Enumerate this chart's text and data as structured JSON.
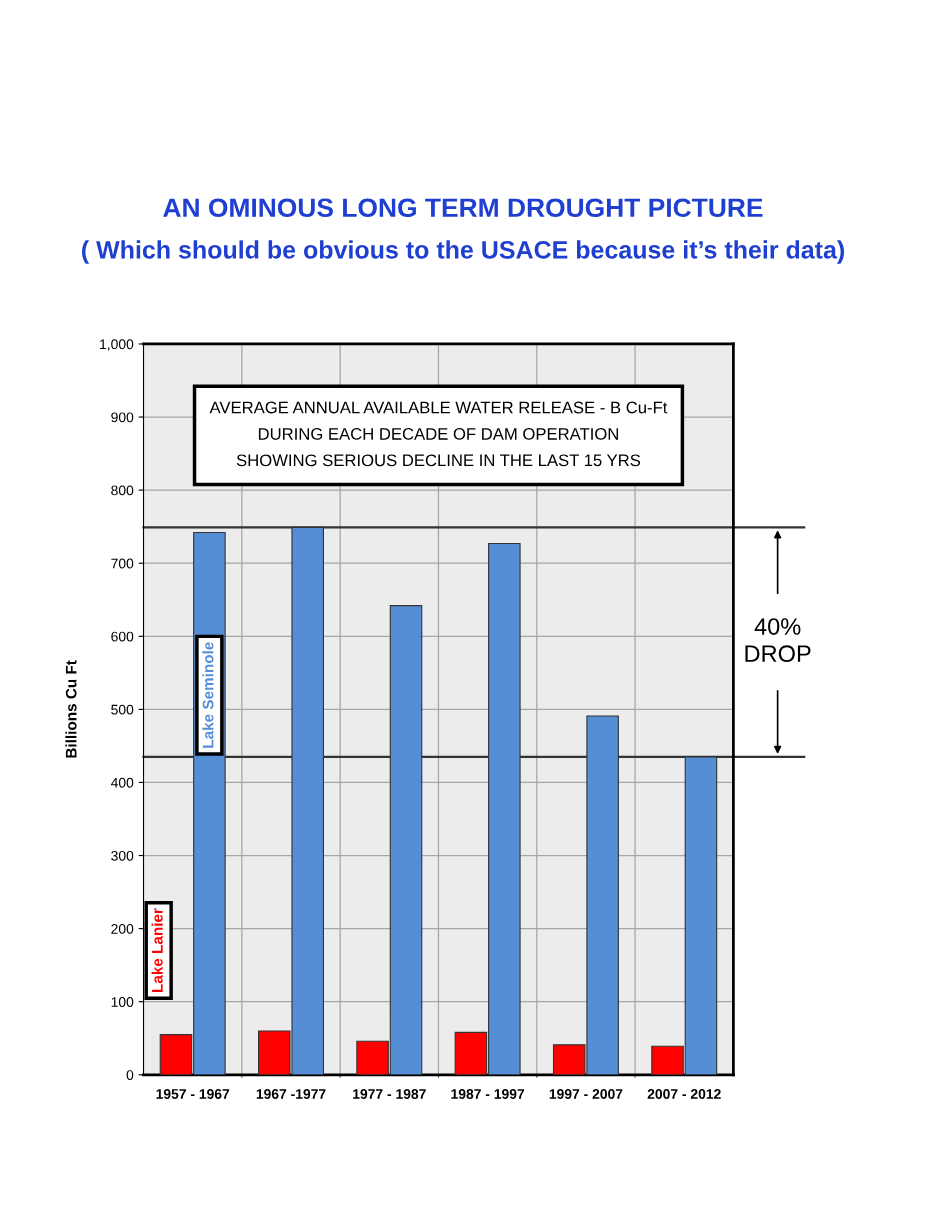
{
  "chart_data": {
    "type": "bar",
    "title": "AN OMINOUS LONG TERM DROUGHT PICTURE",
    "subtitle": "( Which should be obvious to the USACE because it’s their data)",
    "ylabel": "Billions Cu Ft",
    "categories": [
      "1957 - 1967",
      "1967 -1977",
      "1977 - 1987",
      "1987 - 1997",
      "1997 - 2007",
      "2007 - 2012"
    ],
    "series": [
      {
        "name": "Lake Lanier",
        "color": "#ff0000",
        "values": [
          55,
          60,
          46,
          58,
          41,
          39
        ]
      },
      {
        "name": "Lake Seminole",
        "color": "#558ed5",
        "values": [
          742,
          749,
          642,
          727,
          491,
          435
        ]
      }
    ],
    "ylim": [
      0,
      1000
    ],
    "yticks": [
      0,
      100,
      200,
      300,
      400,
      500,
      600,
      700,
      800,
      900,
      {
        "value": 1000,
        "label": "1,000"
      }
    ],
    "ref_lines": [
      {
        "axis": "y",
        "value": 749,
        "label": null
      },
      {
        "axis": "y",
        "value": 435,
        "label": null
      }
    ],
    "annotations": [
      "AVERAGE ANNUAL AVAILABLE WATER RELEASE - B Cu-Ft\nDURING EACH DECADE OF DAM OPERATION\nSHOWING SERIOUS DECLINE IN THE LAST 15 YRS",
      "40%\nDROP"
    ],
    "grid": true,
    "legend": false
  }
}
